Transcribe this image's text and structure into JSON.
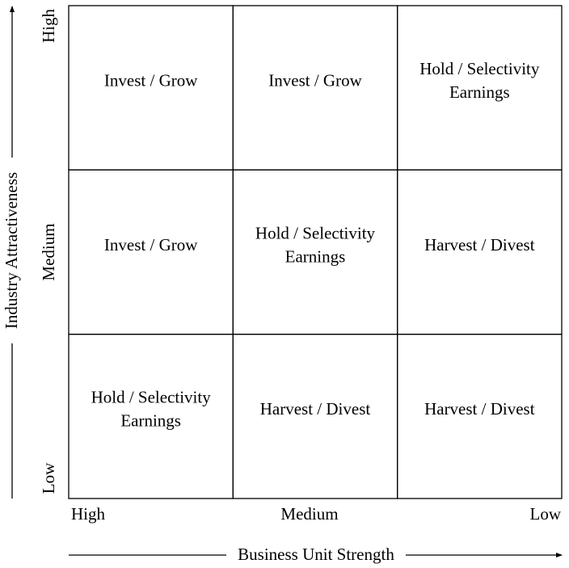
{
  "y_axis": {
    "title": "Industry Attractiveness",
    "labels": [
      "High",
      "Medium",
      "Low"
    ]
  },
  "x_axis": {
    "title": "Business Unit Strength",
    "labels": [
      "High",
      "Medium",
      "Low"
    ]
  },
  "matrix": {
    "rows": [
      [
        [
          "Invest / Grow"
        ],
        [
          "Invest / Grow"
        ],
        [
          "Hold / Selectivity",
          "Earnings"
        ]
      ],
      [
        [
          "Invest / Grow"
        ],
        [
          "Hold / Selectivity",
          "Earnings"
        ],
        [
          "Harvest / Divest"
        ]
      ],
      [
        [
          "Hold / Selectivity",
          "Earnings"
        ],
        [
          "Harvest / Divest"
        ],
        [
          "Harvest / Divest"
        ]
      ]
    ]
  }
}
